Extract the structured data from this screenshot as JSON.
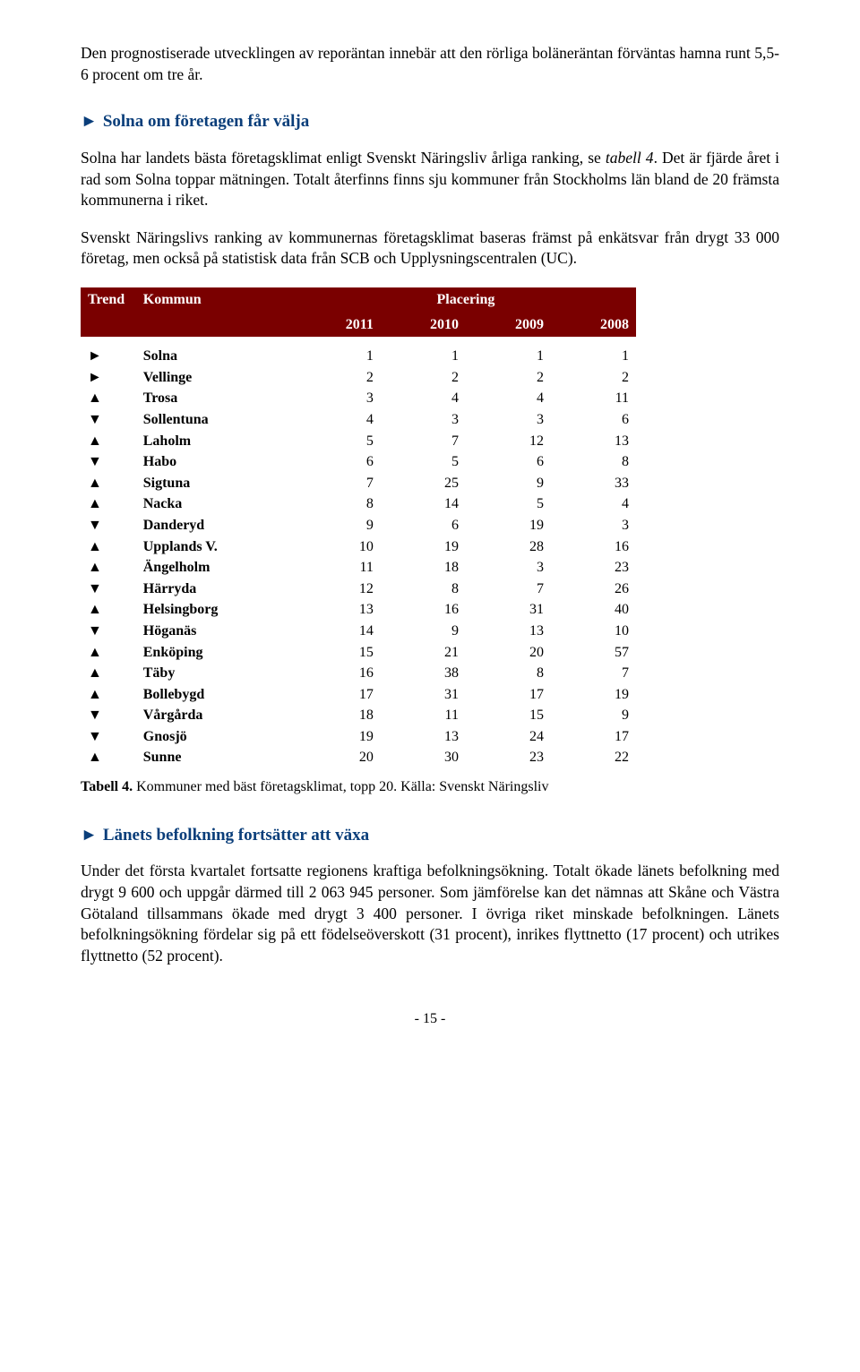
{
  "intro": "Den prognostiserade utvecklingen av reporäntan innebär att den rörliga boläneräntan förväntas hamna runt 5,5-6 procent om tre år.",
  "section1": {
    "marker": "►",
    "title": "Solna om företagen får välja",
    "para1_a": "Solna har landets bästa företagsklimat enligt Svenskt Näringsliv årliga ranking, se ",
    "para1_italic": "tabell 4",
    "para1_b": ". Det är fjärde året i rad som Solna toppar mätningen. Totalt återfinns finns sju kommuner från Stockholms län bland de 20 främsta kommunerna i riket.",
    "para2": "Svenskt Näringslivs ranking av kommunernas företagsklimat baseras främst på enkätsvar från drygt 33 000 företag, men också på statistisk data från SCB och Upplysningscentralen (UC)."
  },
  "table": {
    "head_trend": "Trend",
    "head_kommun": "Kommun",
    "head_placering": "Placering",
    "years": [
      "2011",
      "2010",
      "2009",
      "2008"
    ],
    "trend_symbols": {
      "same": "►",
      "up": "▲",
      "down": "▼"
    },
    "rows": [
      {
        "trend": "same",
        "kommun": "Solna",
        "vals": [
          1,
          1,
          1,
          1
        ]
      },
      {
        "trend": "same",
        "kommun": "Vellinge",
        "vals": [
          2,
          2,
          2,
          2
        ]
      },
      {
        "trend": "up",
        "kommun": "Trosa",
        "vals": [
          3,
          4,
          4,
          11
        ]
      },
      {
        "trend": "down",
        "kommun": "Sollentuna",
        "vals": [
          4,
          3,
          3,
          6
        ]
      },
      {
        "trend": "up",
        "kommun": "Laholm",
        "vals": [
          5,
          7,
          12,
          13
        ]
      },
      {
        "trend": "down",
        "kommun": "Habo",
        "vals": [
          6,
          5,
          6,
          8
        ]
      },
      {
        "trend": "up",
        "kommun": "Sigtuna",
        "vals": [
          7,
          25,
          9,
          33
        ]
      },
      {
        "trend": "up",
        "kommun": "Nacka",
        "vals": [
          8,
          14,
          5,
          4
        ]
      },
      {
        "trend": "down",
        "kommun": "Danderyd",
        "vals": [
          9,
          6,
          19,
          3
        ]
      },
      {
        "trend": "up",
        "kommun": "Upplands V.",
        "vals": [
          10,
          19,
          28,
          16
        ]
      },
      {
        "trend": "up",
        "kommun": "Ängelholm",
        "vals": [
          11,
          18,
          3,
          23
        ]
      },
      {
        "trend": "down",
        "kommun": "Härryda",
        "vals": [
          12,
          8,
          7,
          26
        ]
      },
      {
        "trend": "up",
        "kommun": "Helsingborg",
        "vals": [
          13,
          16,
          31,
          40
        ]
      },
      {
        "trend": "down",
        "kommun": "Höganäs",
        "vals": [
          14,
          9,
          13,
          10
        ]
      },
      {
        "trend": "up",
        "kommun": "Enköping",
        "vals": [
          15,
          21,
          20,
          57
        ]
      },
      {
        "trend": "up",
        "kommun": "Täby",
        "vals": [
          16,
          38,
          8,
          7
        ]
      },
      {
        "trend": "up",
        "kommun": "Bollebygd",
        "vals": [
          17,
          31,
          17,
          19
        ]
      },
      {
        "trend": "down",
        "kommun": "Vårgårda",
        "vals": [
          18,
          11,
          15,
          9
        ]
      },
      {
        "trend": "down",
        "kommun": "Gnosjö",
        "vals": [
          19,
          13,
          24,
          17
        ]
      },
      {
        "trend": "up",
        "kommun": "Sunne",
        "vals": [
          20,
          30,
          23,
          22
        ]
      }
    ]
  },
  "caption": {
    "bold": "Tabell 4.",
    "rest": " Kommuner med bäst företagsklimat, topp 20. Källa: Svenskt Näringsliv"
  },
  "section2": {
    "marker": "►",
    "title": "Länets befolkning fortsätter att växa",
    "para": "Under det första kvartalet fortsatte regionens kraftiga befolkningsökning. Totalt ökade länets befolkning med drygt 9 600 och uppgår därmed till 2 063 945 personer. Som jämförelse kan det nämnas att Skåne och Västra Götaland tillsammans ökade med drygt 3 400 personer. I övriga riket minskade befolkningen. Länets befolkningsökning fördelar sig på ett födelseöverskott (31 procent), inrikes flyttnetto (17 procent) och utrikes flyttnetto (52 procent)."
  },
  "pagenum": "- 15 -"
}
